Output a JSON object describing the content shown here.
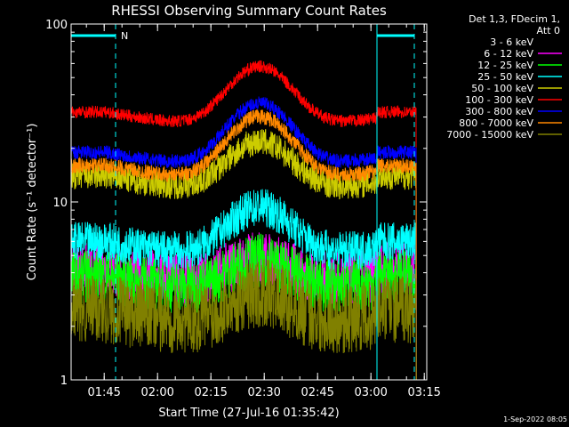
{
  "chart_data": {
    "type": "line",
    "title": "RHESSI Observing Summary Count Rates",
    "xlabel": "Start Time (27-Jul-16 01:35:42)",
    "ylabel": "Count Rate (s⁻¹ detector⁻¹)",
    "yscale": "log",
    "ylim": [
      1,
      100
    ],
    "xlim_min": [
      0,
      100
    ],
    "x_tick_labels": [
      "01:45",
      "02:00",
      "02:15",
      "02:30",
      "02:45",
      "03:00",
      "03:15"
    ],
    "x_tick_minutes": [
      9.3,
      24.3,
      39.3,
      54.3,
      69.3,
      84.3,
      99.3
    ],
    "y_tick_labels": [
      "1",
      "10",
      "100"
    ],
    "y_tick_values": [
      1,
      10,
      100
    ],
    "annotation": "N",
    "legend_header": [
      "Det 1,3, FDecim 1,",
      "Att 0"
    ],
    "timestamp": "1-Sep-2022 08:05",
    "series": [
      {
        "name": "3 - 6 keV",
        "color": "#000000",
        "base": 1.6,
        "peak": 1.4,
        "noise": 0.45
      },
      {
        "name": "6 - 12 keV",
        "color": "#ff00ff",
        "base": 4.2,
        "peak": 1.4,
        "noise": 0.35
      },
      {
        "name": "12 - 25 keV",
        "color": "#00ff00",
        "base": 3.8,
        "peak": 1.5,
        "noise": 0.35
      },
      {
        "name": "25 - 50 keV",
        "color": "#00ffff",
        "base": 6.0,
        "peak": 1.9,
        "noise": 0.25
      },
      {
        "name": "50 - 100 keV",
        "color": "#cccc00",
        "base": 14.0,
        "peak": 1.9,
        "noise": 0.18
      },
      {
        "name": "100 - 300 keV",
        "color": "#ff0000",
        "base": 32.0,
        "peak": 2.2,
        "noise": 0.08
      },
      {
        "name": "300 - 800 keV",
        "color": "#0000ff",
        "base": 19.0,
        "peak": 2.3,
        "noise": 0.09
      },
      {
        "name": "800 - 7000 keV",
        "color": "#ff8800",
        "base": 16.0,
        "peak": 2.3,
        "noise": 0.1
      },
      {
        "name": "7000 - 15000 keV",
        "color": "#808000",
        "base": 2.5,
        "peak": 1.5,
        "noise": 0.45
      }
    ]
  }
}
